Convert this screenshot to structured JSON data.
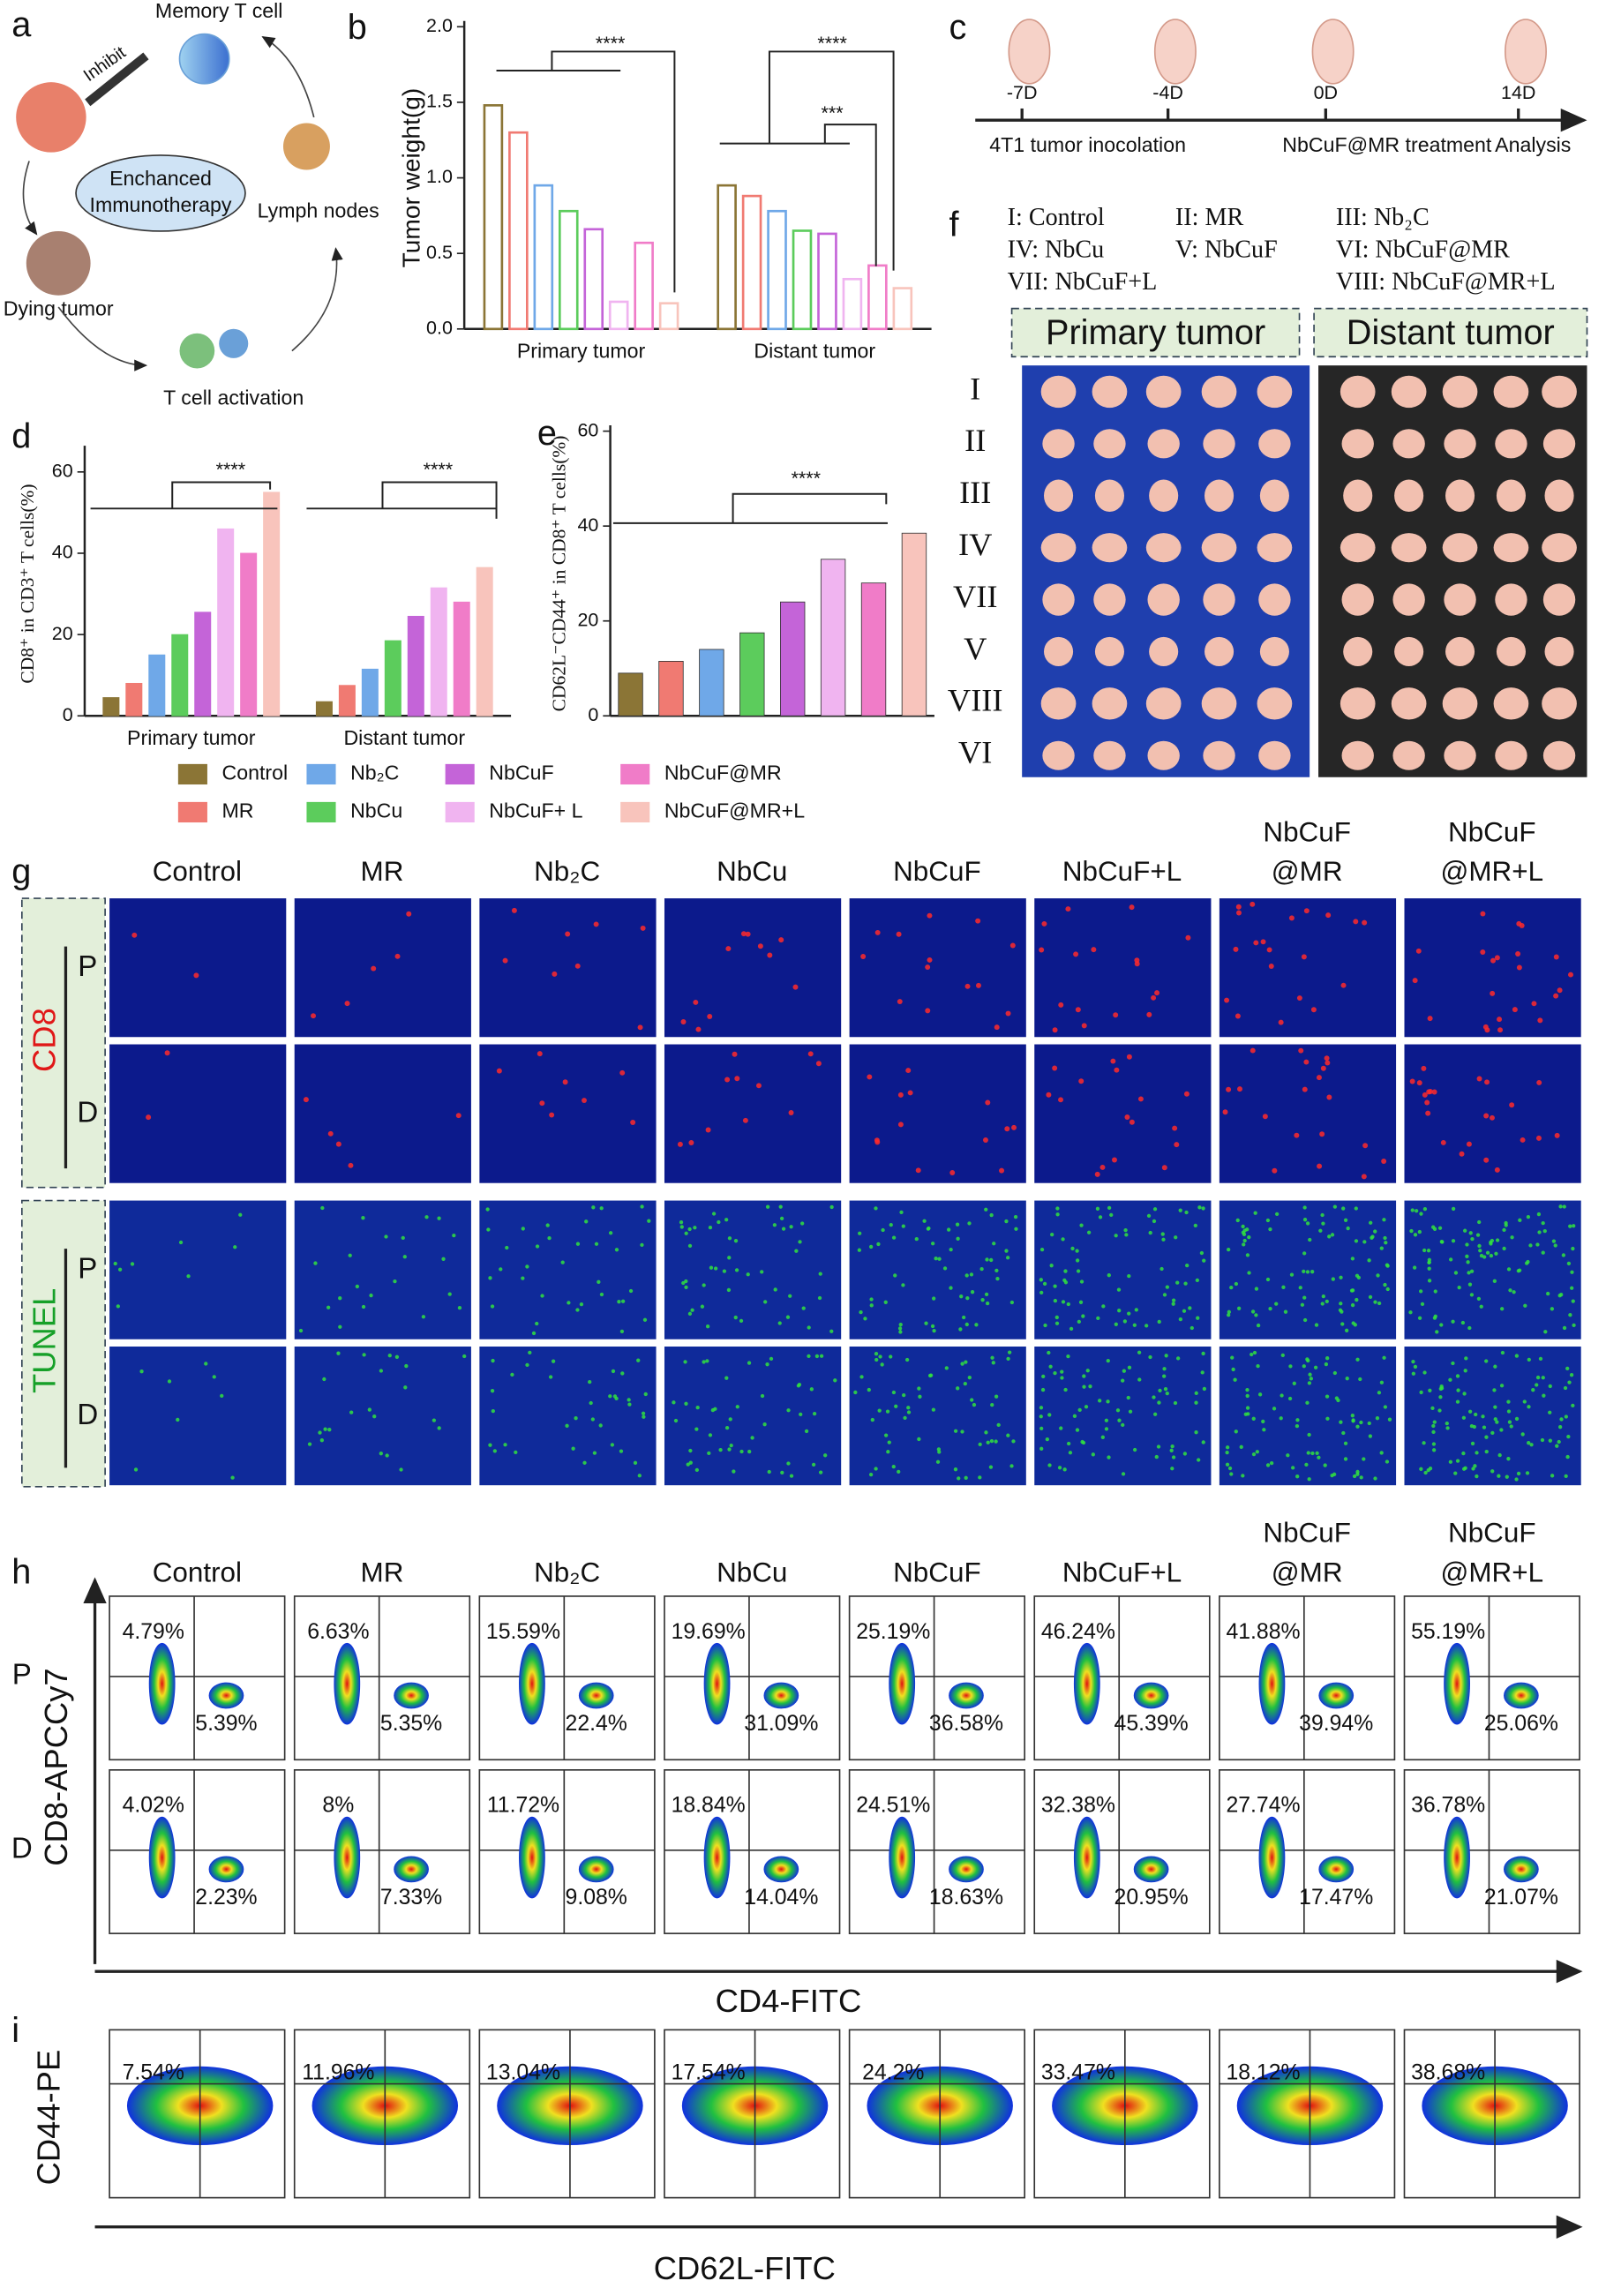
{
  "panels": {
    "a": {
      "label": "a",
      "memory": "Memory T cell",
      "inhibit": "Inhibit",
      "center": [
        "Enchanced",
        "Immunotherapy"
      ],
      "lymph": "Lymph nodes",
      "dying": "Dying tumor",
      "activation": "T cell activation"
    },
    "c": {
      "label": "c",
      "days": [
        "-7D",
        "-4D",
        "0D",
        "14D"
      ],
      "steps": [
        "4T1 tumor inocolation",
        "NbCuF@MR treatment",
        "Analysis"
      ]
    },
    "f": {
      "label": "f",
      "groups": [
        "I: Control",
        "II: MR",
        "III: Nb₂C",
        "IV: NbCu",
        "V: NbCuF",
        "VI: NbCuF@MR",
        "VII: NbCuF+L",
        "VIII: NbCuF@MR+L"
      ],
      "titles": [
        "Primary tumor",
        "Distant tumor"
      ],
      "rows": [
        "I",
        "II",
        "III",
        "IV",
        "VII",
        "V",
        "VIII",
        "VI"
      ]
    },
    "g": {
      "label": "g",
      "columns": [
        [
          "Control"
        ],
        [
          "MR"
        ],
        [
          "Nb₂C"
        ],
        [
          "NbCu"
        ],
        [
          "NbCuF"
        ],
        [
          "NbCuF+L"
        ],
        [
          "NbCuF",
          "@MR"
        ],
        [
          "NbCuF",
          "@MR+L"
        ]
      ],
      "stains": [
        "CD8",
        "TUNEL"
      ],
      "sides": [
        "P",
        "D",
        "P",
        "D"
      ]
    },
    "h": {
      "label": "h",
      "columns": [
        [
          "Control"
        ],
        [
          "MR"
        ],
        [
          "Nb₂C"
        ],
        [
          "NbCu"
        ],
        [
          "NbCuF"
        ],
        [
          "NbCuF+L"
        ],
        [
          "NbCuF",
          "@MR"
        ],
        [
          "NbCuF",
          "@MR+L"
        ]
      ],
      "y_label": "CD8-APCCy7",
      "x_label": "CD4-FITC",
      "rows": [
        {
          "side": "P",
          "upper": [
            "4.79%",
            "6.63%",
            "15.59%",
            "19.69%",
            "25.19%",
            "46.24%",
            "41.88%",
            "55.19%"
          ],
          "lower": [
            "5.39%",
            "5.35%",
            "22.4%",
            "31.09%",
            "36.58%",
            "45.39%",
            "39.94%",
            "25.06%"
          ]
        },
        {
          "side": "D",
          "upper": [
            "4.02%",
            "8%",
            "11.72%",
            "18.84%",
            "24.51%",
            "32.38%",
            "27.74%",
            "36.78%"
          ],
          "lower": [
            "2.23%",
            "7.33%",
            "9.08%",
            "14.04%",
            "18.63%",
            "20.95%",
            "17.47%",
            "21.07%"
          ]
        }
      ]
    },
    "i": {
      "label": "i",
      "y_label": "CD44-PE",
      "x_label": "CD62L-FITC",
      "upper": [
        "7.54%",
        "11.96%",
        "13.04%",
        "17.54%",
        "24.2%",
        "33.47%",
        "18.12%",
        "38.68%"
      ]
    }
  },
  "chart_data": [
    {
      "type": "bar",
      "label": "b",
      "y_label": "Tumor weight(g)",
      "hollow": true,
      "categories": [
        "Primary tumor",
        "Distant tumor"
      ],
      "series": [
        {
          "color": "#8b7536",
          "values": [
            1.48,
            0.95
          ]
        },
        {
          "color": "#f07a72",
          "values": [
            1.3,
            0.88
          ]
        },
        {
          "color": "#6fa8e8",
          "values": [
            0.95,
            0.78
          ]
        },
        {
          "color": "#5ccc5c",
          "values": [
            0.78,
            0.65
          ]
        },
        {
          "color": "#c464d8",
          "values": [
            0.66,
            0.63
          ]
        },
        {
          "color": "#f0b4f0",
          "values": [
            0.18,
            0.33
          ]
        },
        {
          "color": "#f07cc8",
          "values": [
            0.57,
            0.42
          ]
        },
        {
          "color": "#f8c4bc",
          "values": [
            0.17,
            0.27
          ]
        }
      ],
      "ylim": [
        0,
        2
      ],
      "yticks": [
        {
          "value": 0,
          "label": "0.0"
        },
        0.5,
        {
          "value": 1,
          "label": "1.0"
        },
        1.5,
        {
          "value": 2,
          "label": "2.0"
        }
      ],
      "annotations": [
        "****",
        "****",
        "***"
      ]
    },
    {
      "type": "bar",
      "label": "d",
      "y_label": "CD8⁺ in CD3⁺ T cells(%)",
      "categories": [
        "Primary tumor",
        "Distant tumor"
      ],
      "series": [
        {
          "name": "Control",
          "color": "#8b7536",
          "values": [
            4.5,
            3.5
          ]
        },
        {
          "name": "MR",
          "color": "#f07a72",
          "values": [
            8,
            7.5
          ]
        },
        {
          "name": "Nb₂C",
          "color": "#6fa8e8",
          "values": [
            15,
            11.5
          ]
        },
        {
          "name": "NbCu",
          "color": "#5ccc5c",
          "values": [
            20,
            18.5
          ]
        },
        {
          "name": "NbCuF",
          "color": "#c464d8",
          "values": [
            25.5,
            24.5
          ]
        },
        {
          "name": "NbCuF+ L",
          "color": "#f0b4f0",
          "values": [
            46,
            31.5
          ]
        },
        {
          "name": "NbCuF@MR",
          "color": "#f07cc8",
          "values": [
            40,
            28
          ]
        },
        {
          "name": "NbCuF@MR+L",
          "color": "#f8c4bc",
          "values": [
            55,
            36.5
          ]
        }
      ],
      "ylim": [
        0,
        65
      ],
      "yticks": [
        0,
        20,
        40,
        60
      ],
      "annotations": [
        "****",
        "****"
      ]
    },
    {
      "type": "bar",
      "label": "e",
      "y_label": "CD62L⁻CD44⁺ in CD8⁺ T cells(%)",
      "values": [
        9,
        11.5,
        14,
        17.5,
        24,
        33,
        28,
        38.5
      ],
      "colors": [
        "#8b7536",
        "#f07a72",
        "#6fa8e8",
        "#5ccc5c",
        "#c464d8",
        "#f0b4f0",
        "#f07cc8",
        "#f8c4bc"
      ],
      "ylim": [
        0,
        60
      ],
      "yticks": [
        0,
        20,
        40,
        60
      ],
      "annotations": [
        "****"
      ]
    }
  ]
}
